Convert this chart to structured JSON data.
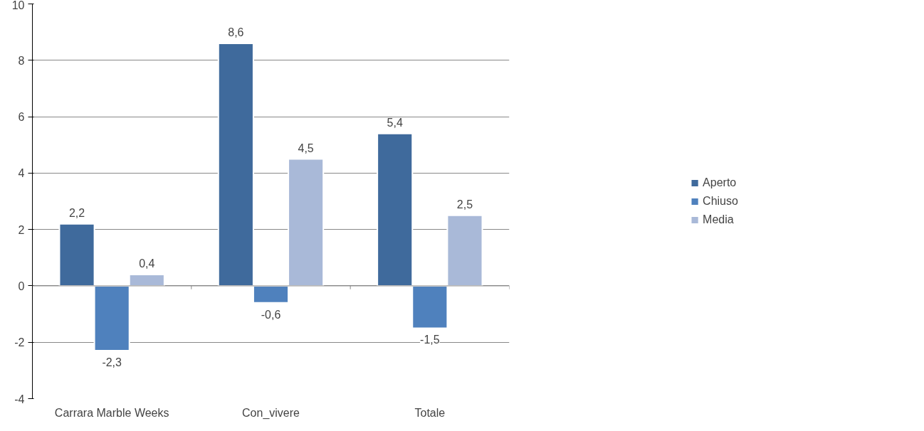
{
  "chart_data": {
    "type": "bar",
    "categories": [
      "Carrara Marble Weeks",
      "Con_vivere",
      "Totale"
    ],
    "series": [
      {
        "name": "Aperto",
        "color": "#3f6a9c",
        "values": [
          2.2,
          8.6,
          5.4
        ],
        "value_labels": [
          "2,2",
          "8,6",
          "5,4"
        ]
      },
      {
        "name": "Chiuso",
        "color": "#4f81bd",
        "values": [
          -2.3,
          -0.6,
          -1.5
        ],
        "value_labels": [
          "-2,3",
          "-0,6",
          "-1,5"
        ]
      },
      {
        "name": "Media",
        "color": "#a9b9d8",
        "values": [
          0.4,
          4.5,
          2.5
        ],
        "value_labels": [
          "0,4",
          "4,5",
          "2,5"
        ]
      }
    ],
    "ylim": [
      -4,
      10
    ],
    "yticks": [
      -4,
      -2,
      0,
      2,
      4,
      6,
      8,
      10
    ],
    "grid": "y",
    "legend": "right"
  }
}
